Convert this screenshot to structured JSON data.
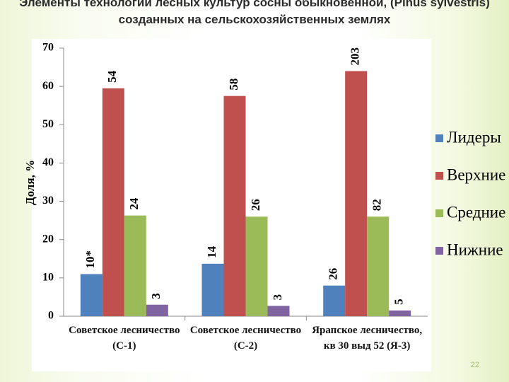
{
  "title": "Элементы технологии лесных культур сосны обыкновенной, (Pinus sylvestris) созданных на сельскохозяйственных землях",
  "page_number": "22",
  "chart_data": {
    "type": "bar",
    "y_label": "Доля, %",
    "categories": [
      "Советское лесничество (С-1)",
      "Советское лесничество (С-2)",
      "Ярапское лесничество, кв 30 выд 52 (Я-3)"
    ],
    "series": [
      {
        "name": "Лидеры",
        "color": "#4f81bd",
        "values": [
          11,
          13.7,
          8
        ],
        "labels": [
          "10*",
          "14",
          "26"
        ]
      },
      {
        "name": "Верхние",
        "color": "#c0504d",
        "values": [
          59.5,
          57.5,
          64
        ],
        "labels": [
          "54",
          "58",
          "203"
        ]
      },
      {
        "name": "Средние",
        "color": "#9bbb59",
        "values": [
          26.3,
          26,
          26
        ],
        "labels": [
          "24",
          "26",
          "82"
        ]
      },
      {
        "name": "Нижние",
        "color": "#8064a2",
        "values": [
          3,
          2.7,
          1.5
        ],
        "labels": [
          "3",
          "3",
          "5"
        ]
      }
    ],
    "ylim": [
      0,
      70
    ],
    "yticks": [
      0,
      10,
      20,
      30,
      40,
      50,
      60,
      70
    ],
    "grid": false,
    "legend": "right"
  }
}
